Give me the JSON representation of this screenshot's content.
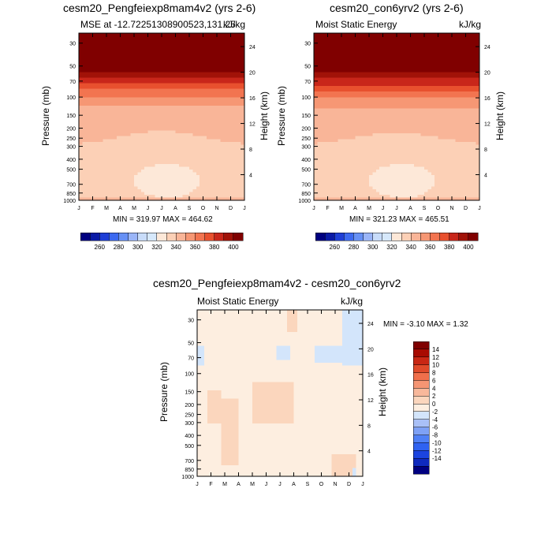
{
  "palette": {
    "seq": [
      "#000080",
      "#0a1aa6",
      "#1e3ed6",
      "#3c69f0",
      "#6690f5",
      "#9ab5f8",
      "#c8dcfa",
      "#d6e8fb",
      "#fde8d8",
      "#fcd0b6",
      "#f9b598",
      "#f69774",
      "#f27450",
      "#e8502e",
      "#c8261a",
      "#a11208",
      "#800000"
    ],
    "diff": [
      "#000080",
      "#0f2abf",
      "#1b44e0",
      "#2f62f1",
      "#4f80f6",
      "#7ea1f6",
      "#a9c0f7",
      "#d3e5fb",
      "#fdeee0",
      "#fbd6bd",
      "#f8b89b",
      "#f59573",
      "#f06f4b",
      "#e04a2a",
      "#c92714",
      "#a80b02",
      "#800000"
    ]
  },
  "panels": {
    "left": {
      "title": "cesm20_Pengfeiexp8mam4v2 (yrs 2-6)",
      "subtitle_left": "MSE at -12.72251308900523,131.25",
      "subtitle_right": "kJ/kg",
      "ylabel": "Pressure (mb)",
      "y2label": "Height (km)",
      "minmax": "MIN = 319.97  MAX = 464.62"
    },
    "right": {
      "title": "cesm20_con6yrv2 (yrs 2-6)",
      "subtitle_left": "Moist Static Energy",
      "subtitle_right": "kJ/kg",
      "ylabel": "Pressure (mb)",
      "y2label": "Height (km)",
      "minmax": "MIN = 321.23  MAX = 465.51"
    },
    "bottom": {
      "title": "cesm20_Pengfeiexp8mam4v2 - cesm20_con6yrv2",
      "subtitle_left": "Moist Static Energy",
      "subtitle_right": "kJ/kg",
      "ylabel": "Pressure (mb)",
      "y2label": "Height (km)",
      "minmax": "MIN =  -3.10  MAX =   1.32"
    }
  },
  "chart_data": [
    {
      "type": "heatmap",
      "title": "cesm20_Pengfeiexp8mam4v2 (yrs 2-6)",
      "xlabel": "",
      "ylabel": "Pressure (mb)",
      "y2label": "Height (km)",
      "x_ticks": [
        "J",
        "F",
        "M",
        "A",
        "M",
        "J",
        "J",
        "A",
        "S",
        "O",
        "N",
        "D",
        "J"
      ],
      "y_ticks": [
        30,
        50,
        70,
        100,
        150,
        200,
        250,
        300,
        400,
        500,
        700,
        850,
        1000
      ],
      "y2_ticks": [
        4,
        8,
        12,
        16,
        20,
        24
      ],
      "y_log_scale": true,
      "colorbar_labels": [
        "260",
        "280",
        "300",
        "320",
        "340",
        "360",
        "380",
        "400"
      ],
      "min": 319.97,
      "max": 464.62,
      "profile": [
        {
          "p": 20,
          "v": 455
        },
        {
          "p": 50,
          "v": 410
        },
        {
          "p": 60,
          "v": 395
        },
        {
          "p": 70,
          "v": 385
        },
        {
          "p": 80,
          "v": 375
        },
        {
          "p": 95,
          "v": 362
        },
        {
          "p": 115,
          "v": 352
        },
        {
          "p": 150,
          "v": 345
        },
        {
          "p": 200,
          "v": 343
        },
        {
          "p": 260,
          "v": 339
        },
        {
          "p": 350,
          "v": 335
        },
        {
          "p": 500,
          "v": 333
        },
        {
          "p": 700,
          "v": 332
        },
        {
          "p": 850,
          "v": 335
        },
        {
          "p": 1000,
          "v": 345
        }
      ],
      "min_region": {
        "center_month": 6.4,
        "center_p": 650,
        "contour": "< 330"
      }
    },
    {
      "type": "heatmap",
      "title": "cesm20_con6yrv2 (yrs 2-6)",
      "xlabel": "",
      "ylabel": "Pressure (mb)",
      "y2label": "Height (km)",
      "x_ticks": [
        "J",
        "F",
        "M",
        "A",
        "M",
        "J",
        "J",
        "A",
        "S",
        "O",
        "N",
        "D",
        "J"
      ],
      "y_ticks": [
        30,
        50,
        70,
        100,
        150,
        200,
        250,
        300,
        400,
        500,
        700,
        850,
        1000
      ],
      "y2_ticks": [
        4,
        8,
        12,
        16,
        20,
        24
      ],
      "y_log_scale": true,
      "colorbar_labels": [
        "260",
        "280",
        "300",
        "320",
        "340",
        "360",
        "380",
        "400"
      ],
      "min": 321.23,
      "max": 465.51,
      "profile": [
        {
          "p": 20,
          "v": 456
        },
        {
          "p": 50,
          "v": 411
        },
        {
          "p": 60,
          "v": 396
        },
        {
          "p": 70,
          "v": 386
        },
        {
          "p": 80,
          "v": 376
        },
        {
          "p": 95,
          "v": 363
        },
        {
          "p": 115,
          "v": 353
        },
        {
          "p": 150,
          "v": 346
        },
        {
          "p": 200,
          "v": 344
        },
        {
          "p": 260,
          "v": 339
        },
        {
          "p": 350,
          "v": 335
        },
        {
          "p": 500,
          "v": 333
        },
        {
          "p": 700,
          "v": 332
        },
        {
          "p": 850,
          "v": 335
        },
        {
          "p": 1000,
          "v": 345
        }
      ],
      "min_region": {
        "center_month": 6.4,
        "center_p": 650,
        "contour": "< 330"
      }
    },
    {
      "type": "heatmap",
      "title": "cesm20_Pengfeiexp8mam4v2 - cesm20_con6yrv2",
      "xlabel": "",
      "ylabel": "Pressure (mb)",
      "y2label": "Height (km)",
      "x_ticks": [
        "J",
        "F",
        "M",
        "A",
        "M",
        "J",
        "J",
        "A",
        "S",
        "O",
        "N",
        "D",
        "J"
      ],
      "y_ticks": [
        30,
        50,
        70,
        100,
        150,
        200,
        250,
        300,
        400,
        500,
        700,
        850,
        1000
      ],
      "y2_ticks": [
        4,
        8,
        12,
        16,
        20,
        24
      ],
      "y_log_scale": true,
      "colorbar_labels": [
        "14",
        "12",
        "10",
        "8",
        "6",
        "4",
        "2",
        "0",
        "-2",
        "-4",
        "-6",
        "-8",
        "-10",
        "-12",
        "-14"
      ],
      "min": -3.1,
      "max": 1.32,
      "background_value": -1,
      "positive_regions": [
        {
          "months": [
            0.8,
            1.8
          ],
          "p": [
            150,
            300
          ],
          "value": 0.5
        },
        {
          "months": [
            1.8,
            3.0
          ],
          "p": [
            180,
            800
          ],
          "value": 0.5
        },
        {
          "months": [
            4.0,
            7.0
          ],
          "p": [
            120,
            300
          ],
          "value": 0.5
        },
        {
          "months": [
            9.8,
            11.5
          ],
          "p": [
            600,
            1000
          ],
          "value": 0.5
        },
        {
          "months": [
            6.5,
            7.3
          ],
          "p": [
            24,
            40
          ],
          "value": 0.5
        }
      ],
      "negative_regions": [
        {
          "months": [
            5.8,
            6.8
          ],
          "p": [
            55,
            75
          ],
          "value": -2.5
        },
        {
          "months": [
            8.4,
            10.4
          ],
          "p": [
            55,
            80
          ],
          "value": -2.5
        },
        {
          "months": [
            10.4,
            12
          ],
          "p": [
            24,
            85
          ],
          "value": -2.5
        },
        {
          "months": [
            0,
            0.5
          ],
          "p": [
            55,
            85
          ],
          "value": -2.5
        },
        {
          "months": [
            11.2,
            11.6
          ],
          "p": [
            820,
            1000
          ],
          "value": -2.5
        }
      ]
    }
  ]
}
